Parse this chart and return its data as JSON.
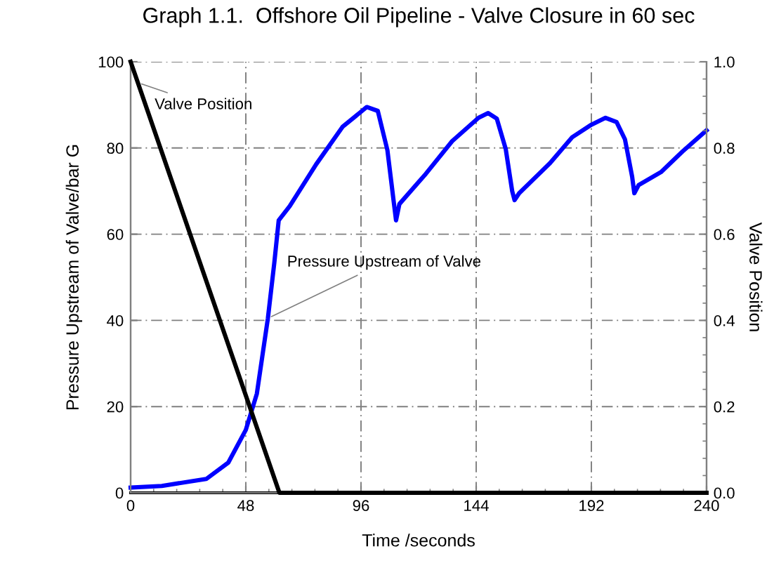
{
  "chart_data": {
    "type": "line",
    "title": "Graph 1.1.  Offshore Oil Pipeline - Valve Closure in 60 sec",
    "xlabel": "Time /seconds",
    "ylabel": "Pressure Upstream of Valve/bar G",
    "y2label": "Valve Position",
    "series": [
      {
        "name": "Pressure Upstream of Valve",
        "color": "#0000ff",
        "x": [
          0,
          13,
          31.5,
          40.7,
          48,
          52.6,
          57.2,
          59.9,
          61.7,
          66.3,
          77.3,
          88.3,
          98.4,
          103,
          107,
          109.4,
          110.6,
          112,
          123,
          134,
          145,
          149,
          152.6,
          156.3,
          159,
          160,
          161.9,
          174.8,
          184,
          192,
          197.9,
          202.5,
          206,
          209,
          209.9,
          211.7,
          221,
          230,
          240
        ],
        "values": [
          1.2,
          1.6,
          3.2,
          7,
          14.6,
          23,
          40.5,
          53.5,
          63.2,
          66.5,
          76.2,
          84.9,
          89.5,
          88.6,
          79.5,
          68.6,
          63.2,
          67,
          74,
          81.6,
          87,
          88.1,
          86.8,
          79.8,
          70,
          67.9,
          69.5,
          76.5,
          82.5,
          85.4,
          87,
          86,
          82,
          73.3,
          69.5,
          71.4,
          74.4,
          79.2,
          84.1
        ]
      },
      {
        "name": "Valve Position",
        "color": "#000000",
        "axis": "y2",
        "x": [
          0,
          62,
          240
        ],
        "values": [
          1,
          0,
          0
        ]
      }
    ],
    "xlim": [
      0,
      240
    ],
    "xticks": [
      0,
      48,
      96,
      144,
      192,
      240
    ],
    "ylim": [
      0,
      100
    ],
    "yticks": [
      0,
      20,
      40,
      60,
      80,
      100
    ],
    "y2lim": [
      0,
      1
    ],
    "y2ticks": [
      {
        "value": 0,
        "label": "0.0"
      },
      {
        "value": 0.2,
        "label": "0.2"
      },
      {
        "value": 0.4,
        "label": "0.4"
      },
      {
        "value": 0.6,
        "label": "0.6"
      },
      {
        "value": 0.8,
        "label": "0.8"
      },
      {
        "value": 1,
        "label": "1.0"
      }
    ],
    "grid": true,
    "line_style": "solid",
    "marker": "none",
    "legend": false
  }
}
